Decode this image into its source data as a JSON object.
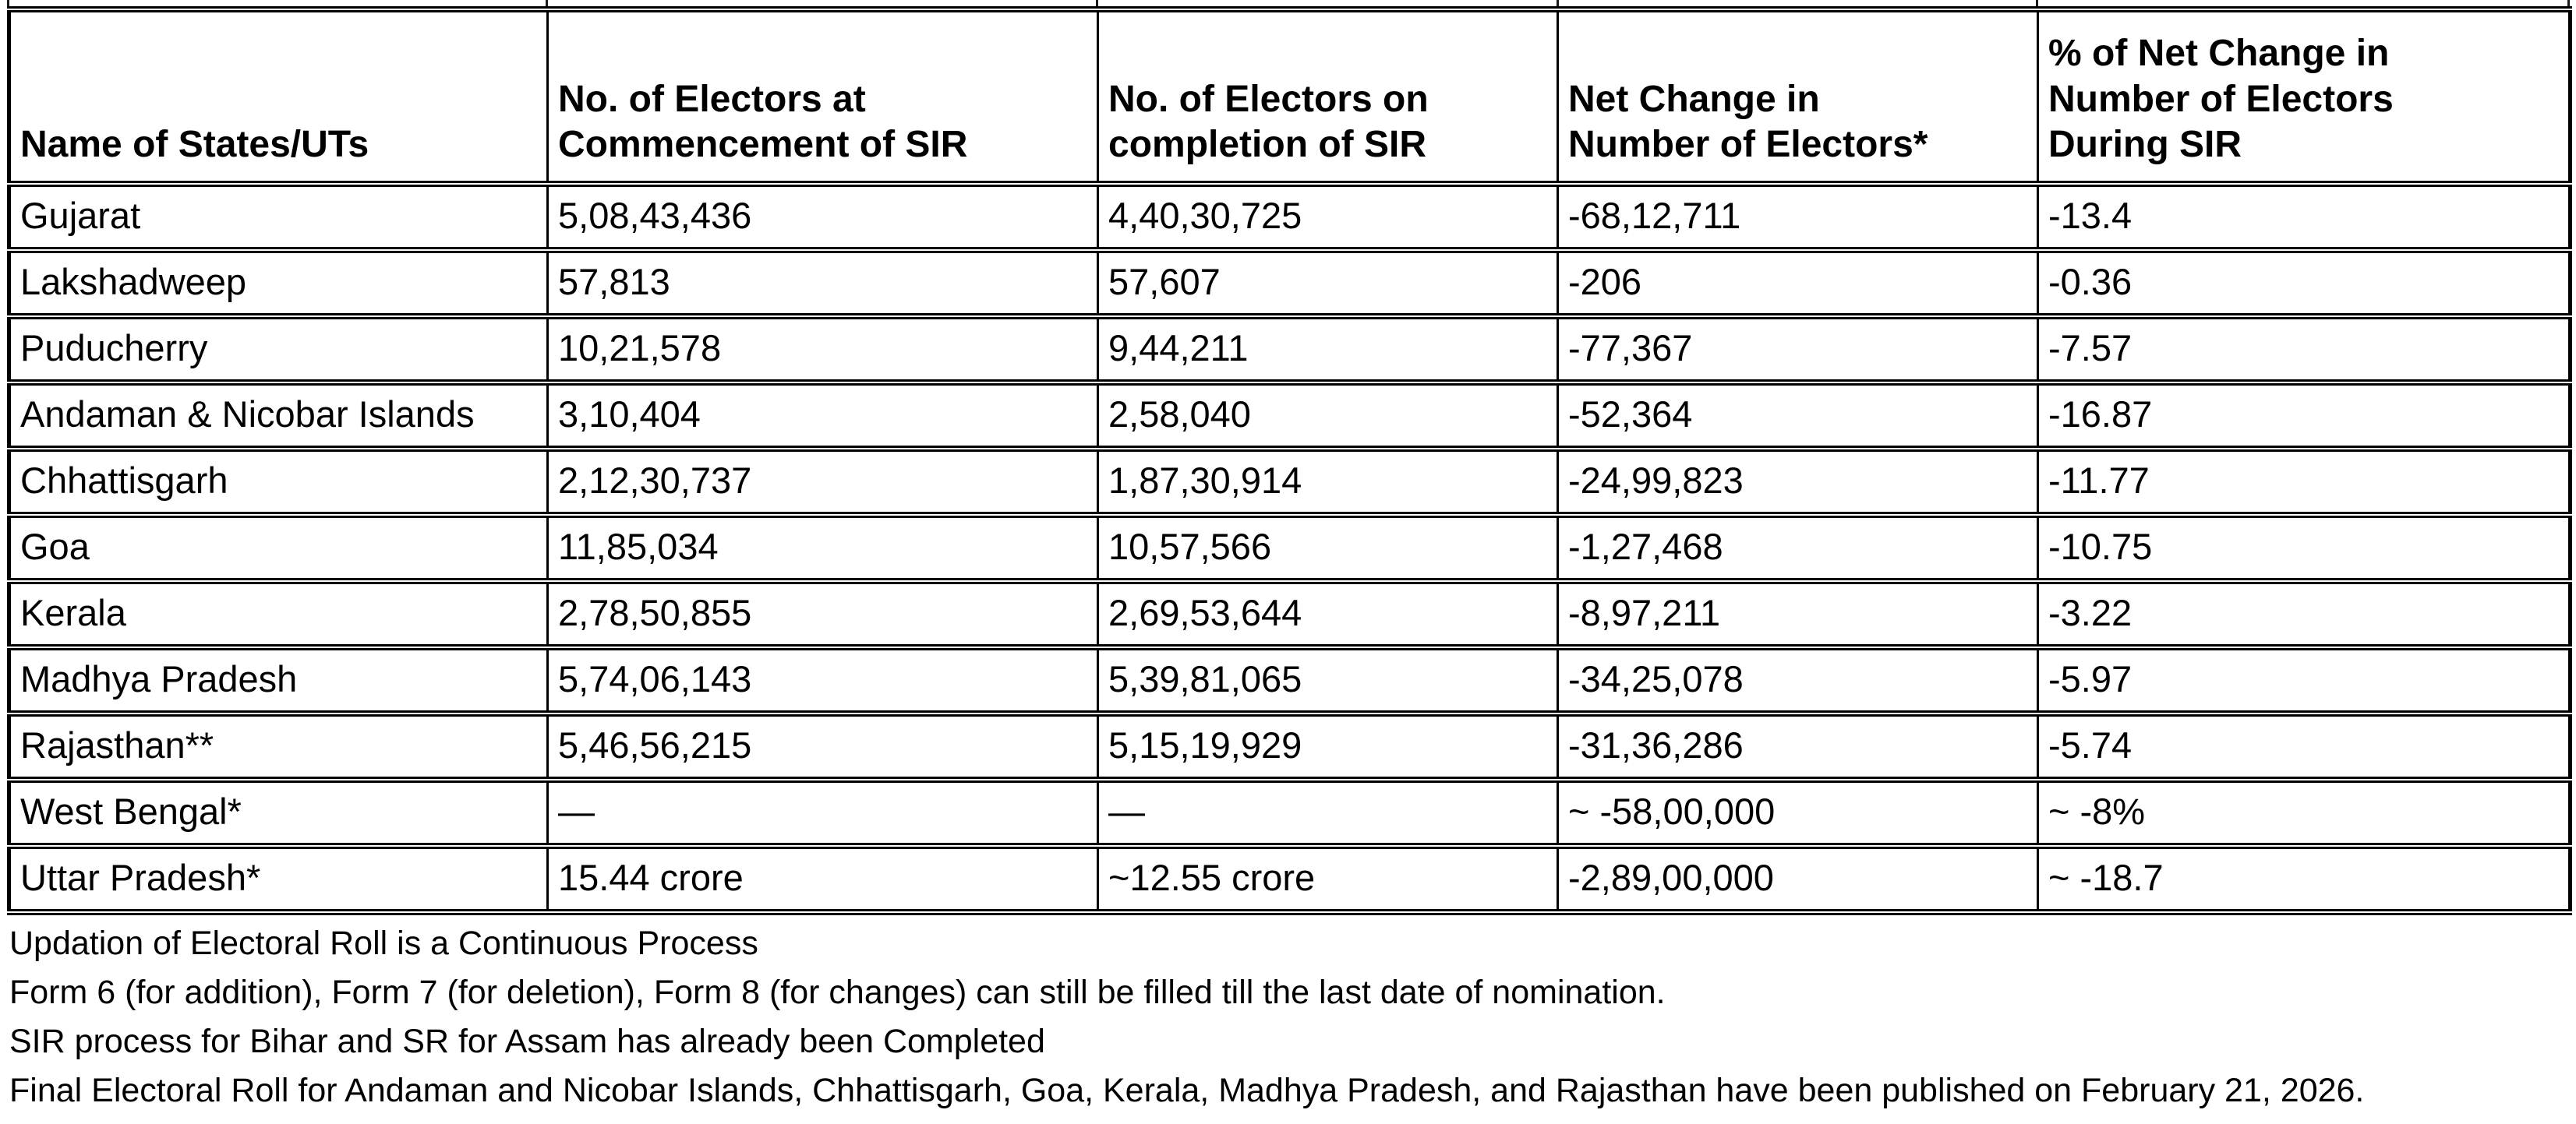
{
  "table": {
    "columns": [
      "Name of States/UTs",
      "No. of Electors at\nCommencement of SIR",
      "No. of Electors on\ncompletion of SIR",
      "Net Change in\nNumber of Electors*",
      "% of Net Change in\nNumber of Electors\nDuring SIR"
    ],
    "rows": [
      [
        "Gujarat",
        "5,08,43,436",
        "4,40,30,725",
        "-68,12,711",
        "-13.4"
      ],
      [
        "Lakshadweep",
        "57,813",
        "57,607",
        "-206",
        "-0.36"
      ],
      [
        "Puducherry",
        "10,21,578",
        "9,44,211",
        "-77,367",
        "-7.57"
      ],
      [
        "Andaman & Nicobar Islands",
        "3,10,404",
        "2,58,040",
        "-52,364",
        "-16.87"
      ],
      [
        "Chhattisgarh",
        "2,12,30,737",
        "1,87,30,914",
        "-24,99,823",
        "-11.77"
      ],
      [
        "Goa",
        "11,85,034",
        "10,57,566",
        "-1,27,468",
        "-10.75"
      ],
      [
        "Kerala",
        "2,78,50,855",
        "2,69,53,644",
        "-8,97,211",
        "-3.22"
      ],
      [
        "Madhya Pradesh",
        "5,74,06,143",
        "5,39,81,065",
        "-34,25,078",
        "-5.97"
      ],
      [
        "Rajasthan**",
        "5,46,56,215",
        "5,15,19,929",
        "-31,36,286",
        "-5.74"
      ],
      [
        "West Bengal*",
        "—",
        "—",
        "~ -58,00,000",
        "~ -8%"
      ],
      [
        "Uttar Pradesh*",
        "15.44 crore",
        "~12.55 crore",
        "-2,89,00,000",
        "~ -18.7"
      ]
    ]
  },
  "notes": [
    "Updation of Electoral Roll is a Continuous Process",
    "Form 6 (for addition), Form 7 (for deletion), Form 8 (for changes) can still be filled till the last date of nomination.",
    "SIR process for Bihar and SR for Assam has already been Completed",
    "Final Electoral Roll for Andaman and Nicobar Islands, Chhattisgarh, Goa, Kerala, Madhya Pradesh, and Rajasthan have been published on February 21, 2026."
  ]
}
